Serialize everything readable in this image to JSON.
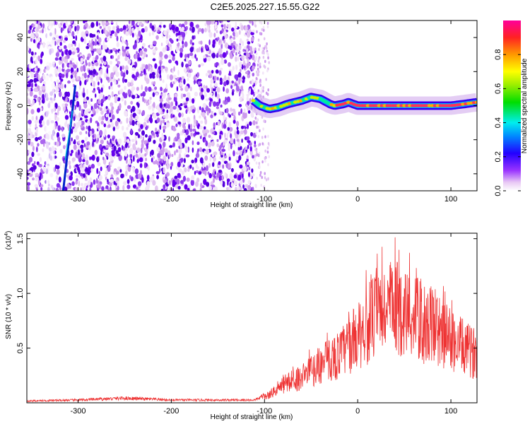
{
  "title": "C2E5.2025.227.15.55.G22",
  "chart_data": [
    {
      "type": "heatmap",
      "xlabel": "Height of straight line (km)",
      "ylabel": "Frequency (Hz)",
      "xlim": [
        -355,
        128
      ],
      "ylim": [
        -50,
        50
      ],
      "xticks": [
        -300,
        -200,
        -100,
        0,
        100
      ],
      "yticks": [
        -40,
        -20,
        0,
        20,
        40
      ],
      "colorbar": {
        "label": "Normalized spectral amplitude",
        "range": [
          0,
          1
        ],
        "ticks": [
          "0.0",
          "0.2",
          "0.4",
          "0.6",
          "0.8"
        ],
        "tick_values": [
          0,
          0.2,
          0.4,
          0.6,
          0.8
        ]
      },
      "features": {
        "noise_region_x": [
          -355,
          -110
        ],
        "sparse_region_x": [
          -110,
          -95
        ],
        "streak": {
          "x": [
            -316,
            -303
          ],
          "y": [
            -50,
            12
          ]
        },
        "ridge": {
          "x": [
            -112,
            -105,
            -95,
            -85,
            -75,
            -60,
            -50,
            -40,
            -30,
            -25,
            -15,
            -10,
            0,
            20,
            40,
            60,
            80,
            100,
            115,
            128
          ],
          "y": [
            3,
            0,
            -2,
            -1,
            1,
            3,
            5,
            4,
            1,
            0,
            1,
            2,
            0,
            0,
            0,
            0,
            0,
            0,
            1,
            2
          ]
        }
      }
    },
    {
      "type": "line",
      "xlabel": "Height of straight line (km)",
      "ylabel": "SNR (10 * v/v)",
      "yscale_label": "(x10",
      "yscale_exp": "4",
      "yscale_close": ")",
      "xlim": [
        -355,
        128
      ],
      "ylim": [
        0,
        1.55
      ],
      "xticks": [
        -300,
        -200,
        -100,
        0,
        100
      ],
      "yticks": [
        0.5,
        1.0,
        1.5
      ],
      "ytick_labels": [
        "0.5",
        "1.0",
        "1.5"
      ],
      "series": [
        {
          "color": "#ee3333",
          "envelope_x": [
            -355,
            -300,
            -250,
            -200,
            -150,
            -110,
            -95,
            -80,
            -70,
            -60,
            -50,
            -40,
            -30,
            -20,
            -10,
            0,
            10,
            20,
            30,
            40,
            50,
            60,
            70,
            80,
            90,
            100,
            110,
            120,
            128
          ],
          "envelope_y": [
            0.02,
            0.03,
            0.05,
            0.03,
            0.03,
            0.03,
            0.1,
            0.22,
            0.28,
            0.32,
            0.4,
            0.48,
            0.55,
            0.6,
            0.72,
            0.85,
            0.98,
            1.1,
            1.18,
            1.2,
            1.15,
            1.08,
            1.0,
            0.95,
            0.88,
            0.8,
            0.72,
            0.65,
            0.62
          ]
        }
      ]
    }
  ]
}
